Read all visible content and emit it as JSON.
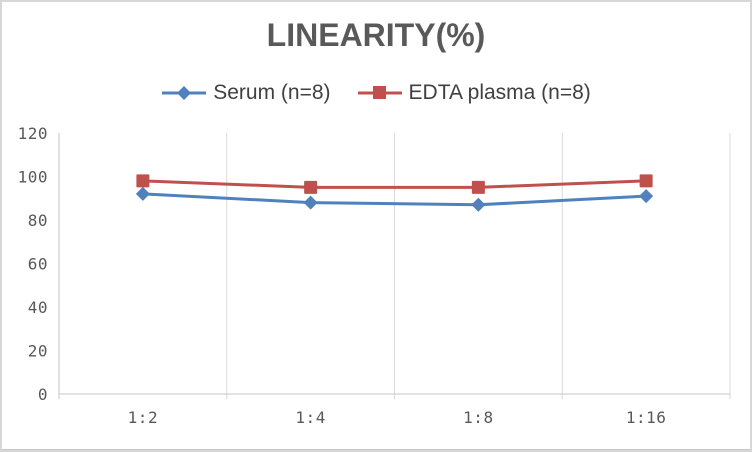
{
  "chart_data": {
    "type": "line",
    "title": "LINEARITY(%)",
    "categories": [
      "1:2",
      "1:4",
      "1:8",
      "1:16"
    ],
    "series": [
      {
        "name": "Serum (n=8)",
        "marker": "diamond",
        "color": "#4F81BD",
        "values": [
          92,
          88,
          87,
          91
        ]
      },
      {
        "name": "EDTA plasma (n=8)",
        "marker": "square",
        "color": "#C0504D",
        "values": [
          98,
          95,
          95,
          98
        ]
      }
    ],
    "xlabel": "",
    "ylabel": "",
    "ylim": [
      0,
      120
    ],
    "y_ticks": [
      0,
      20,
      40,
      60,
      80,
      100,
      120
    ],
    "grid": "vertical-only",
    "legend_position": "top",
    "colors": {
      "title_text": "#595959",
      "tick_text": "#595959",
      "legend_text": "#404040",
      "gridline": "#D9D9D9",
      "axis_line": "#C6C6C6",
      "plot_background": "#FFFFFF",
      "frame_border": "#D7D7D7"
    }
  }
}
